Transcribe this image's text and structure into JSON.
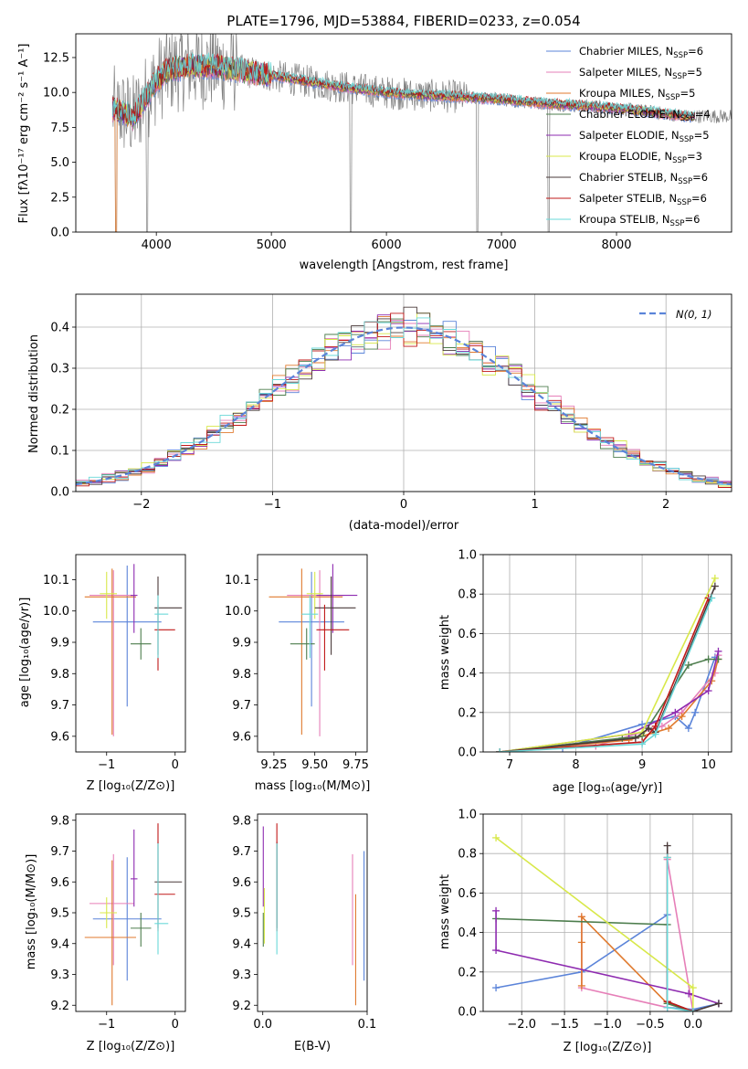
{
  "colors": {
    "Chabrier MILES": "#5b84d9",
    "Salpeter MILES": "#e67fb8",
    "Kroupa MILES": "#e07a2e",
    "Chabrier ELODIE": "#4d7d4d",
    "Salpeter ELODIE": "#8e2bb0",
    "Kroupa ELODIE": "#d8e84a",
    "Chabrier STELIB": "#4a3a3a",
    "Salpeter STELIB": "#c01818",
    "Kroupa STELIB": "#6ad8d8",
    "data": "#808080"
  },
  "chart_data": [
    {
      "id": "spectrum",
      "type": "line",
      "title": "PLATE=1796, MJD=53884, FIBERID=0233, z=0.054",
      "xlabel": "wavelength [Angstrom, rest frame]",
      "ylabel": "Flux [fλ10⁻¹⁷ erg cm⁻² s⁻¹ A⁻¹]",
      "xlim": [
        3300,
        9000
      ],
      "ylim": [
        0,
        14.2
      ],
      "xticks": [
        4000,
        5000,
        6000,
        7000,
        8000
      ],
      "yticks": [
        0.0,
        2.5,
        5.0,
        7.5,
        10.0,
        12.5
      ],
      "legend_position": "upper right",
      "series": [
        {
          "name": "Chabrier MILES",
          "nssp": "6"
        },
        {
          "name": "Salpeter MILES",
          "nssp": "5"
        },
        {
          "name": "Kroupa MILES",
          "nssp": "5"
        },
        {
          "name": "Chabrier ELODIE",
          "nssp": "4"
        },
        {
          "name": "Salpeter ELODIE",
          "nssp": "5"
        },
        {
          "name": "Kroupa ELODIE",
          "nssp": "3"
        },
        {
          "name": "Chabrier STELIB",
          "nssp": "6"
        },
        {
          "name": "Salpeter STELIB",
          "nssp": "6"
        },
        {
          "name": "Kroupa STELIB",
          "nssp": "6"
        }
      ],
      "model_continuum": {
        "x": [
          3620,
          3700,
          3800,
          3900,
          4000,
          4100,
          4300,
          4500,
          4700,
          5000,
          5300,
          5600,
          6000,
          6300,
          6600,
          7000,
          7400,
          7800,
          8200,
          8600
        ],
        "y": [
          8.8,
          8.6,
          8.2,
          9.5,
          10.8,
          11.6,
          11.9,
          11.9,
          11.6,
          11.2,
          10.8,
          10.4,
          10.0,
          9.8,
          9.7,
          9.5,
          9.2,
          9.0,
          8.7,
          8.3
        ]
      },
      "data_dropouts": [
        3650,
        3920,
        5690,
        6790,
        7410
      ]
    },
    {
      "id": "residuals",
      "type": "histogram",
      "xlabel": "(data-model)/error",
      "ylabel": "Normed distribution",
      "xlim": [
        -2.5,
        2.5
      ],
      "ylim": [
        0,
        0.48
      ],
      "xticks": [
        -2,
        -1,
        0,
        1,
        2
      ],
      "yticks": [
        0.0,
        0.1,
        0.2,
        0.3,
        0.4
      ],
      "grid": true,
      "legend": "~N(0, 1)",
      "legend_position": "upper right",
      "reference_curve": "gaussian mean 0 sigma 1"
    },
    {
      "id": "age-vs-z",
      "type": "errorbar",
      "xlabel": "Z [log₁₀(Z/Z⊙)]",
      "ylabel": "age  [log₁₀(age/yr)]",
      "xlim": [
        -1.45,
        0.15
      ],
      "ylim": [
        9.55,
        10.18
      ],
      "xticks": [
        -1,
        0
      ],
      "yticks": [
        9.6,
        9.7,
        9.8,
        9.9,
        10.0,
        10.1
      ],
      "points": [
        {
          "s": "Chabrier MILES",
          "x": -0.7,
          "xe": [
            0.5,
            0.5
          ],
          "y": 9.965,
          "ye": [
            0.27,
            0.18
          ]
        },
        {
          "s": "Salpeter MILES",
          "x": -0.9,
          "xe": [
            0.35,
            0.3
          ],
          "y": 10.05,
          "ye": [
            0.45,
            0.08
          ]
        },
        {
          "s": "Kroupa MILES",
          "x": -0.92,
          "xe": [
            0.4,
            0.35
          ],
          "y": 10.045,
          "ye": [
            0.44,
            0.09
          ]
        },
        {
          "s": "Chabrier ELODIE",
          "x": -0.5,
          "xe": [
            0.15,
            0.15
          ],
          "y": 9.895,
          "ye": [
            0.05,
            0.05
          ]
        },
        {
          "s": "Salpeter ELODIE",
          "x": -0.6,
          "xe": [
            0.05,
            0.05
          ],
          "y": 10.05,
          "ye": [
            0.12,
            0.1
          ]
        },
        {
          "s": "Kroupa ELODIE",
          "x": -1.0,
          "xe": [
            0.1,
            0.15
          ],
          "y": 10.055,
          "ye": [
            0.08,
            0.07
          ]
        },
        {
          "s": "Chabrier STELIB",
          "x": -0.25,
          "xe": [
            0.05,
            0.35
          ],
          "y": 10.01,
          "ye": [
            0.15,
            0.1
          ]
        },
        {
          "s": "Salpeter STELIB",
          "x": -0.25,
          "xe": [
            0.05,
            0.25
          ],
          "y": 9.94,
          "ye": [
            0.13,
            0.08
          ]
        },
        {
          "s": "Kroupa STELIB",
          "x": -0.25,
          "xe": [
            0.05,
            0.15
          ],
          "y": 9.99,
          "ye": [
            0.14,
            0.06
          ]
        }
      ]
    },
    {
      "id": "age-vs-mass",
      "type": "errorbar",
      "xlabel": "mass [log₁₀(M/M⊙)]",
      "xlim": [
        9.15,
        9.82
      ],
      "ylim": [
        9.55,
        10.18
      ],
      "xticks": [
        9.25,
        9.5,
        9.75
      ],
      "yticks": [
        9.6,
        9.7,
        9.8,
        9.9,
        10.0,
        10.1
      ],
      "points": [
        {
          "s": "Chabrier MILES",
          "x": 9.48,
          "xe": [
            0.2,
            0.2
          ],
          "y": 9.965,
          "ye": [
            0.27,
            0.16
          ]
        },
        {
          "s": "Salpeter MILES",
          "x": 9.53,
          "xe": [
            0.2,
            0.15
          ],
          "y": 10.05,
          "ye": [
            0.45,
            0.08
          ]
        },
        {
          "s": "Kroupa MILES",
          "x": 9.42,
          "xe": [
            0.2,
            0.25
          ],
          "y": 10.045,
          "ye": [
            0.44,
            0.09
          ]
        },
        {
          "s": "Chabrier ELODIE",
          "x": 9.45,
          "xe": [
            0.1,
            0.05
          ],
          "y": 9.895,
          "ye": [
            0.05,
            0.05
          ]
        },
        {
          "s": "Salpeter ELODIE",
          "x": 9.61,
          "xe": [
            0.1,
            0.15
          ],
          "y": 10.05,
          "ye": [
            0.12,
            0.1
          ]
        },
        {
          "s": "Kroupa ELODIE",
          "x": 9.5,
          "xe": [
            0.05,
            0.05
          ],
          "y": 10.055,
          "ye": [
            0.08,
            0.07
          ]
        },
        {
          "s": "Chabrier STELIB",
          "x": 9.6,
          "xe": [
            0.1,
            0.15
          ],
          "y": 10.01,
          "ye": [
            0.15,
            0.1
          ]
        },
        {
          "s": "Salpeter STELIB",
          "x": 9.56,
          "xe": [
            0.05,
            0.15
          ],
          "y": 9.94,
          "ye": [
            0.13,
            0.08
          ]
        },
        {
          "s": "Kroupa STELIB",
          "x": 9.47,
          "xe": [
            0.05,
            0.05
          ],
          "y": 9.99,
          "ye": [
            0.14,
            0.06
          ]
        }
      ]
    },
    {
      "id": "mass-weight-vs-age",
      "type": "line",
      "xlabel": "age  [log₁₀(age/yr)]",
      "ylabel": "mass weight",
      "xlim": [
        6.6,
        10.35
      ],
      "ylim": [
        0,
        1
      ],
      "xticks": [
        7,
        8,
        9,
        10
      ],
      "yticks": [
        0.0,
        0.2,
        0.4,
        0.6,
        0.8,
        1.0
      ],
      "grid": true,
      "series": [
        {
          "name": "Chabrier MILES",
          "x": [
            6.85,
            7.8,
            9.0,
            9.5,
            9.7,
            9.8,
            10.1
          ],
          "y": [
            0.0,
            0.02,
            0.14,
            0.18,
            0.12,
            0.2,
            0.48
          ]
        },
        {
          "name": "Salpeter MILES",
          "x": [
            6.85,
            8.3,
            9.3,
            9.6,
            10.1,
            10.15
          ],
          "y": [
            0.0,
            0.03,
            0.13,
            0.2,
            0.4,
            0.49
          ]
        },
        {
          "name": "Kroupa MILES",
          "x": [
            6.85,
            8.8,
            9.4,
            9.6,
            10.05,
            10.15
          ],
          "y": [
            0.0,
            0.06,
            0.12,
            0.18,
            0.36,
            0.47
          ]
        },
        {
          "name": "Chabrier ELODIE",
          "x": [
            6.85,
            8.7,
            9.0,
            9.7,
            10.0,
            10.15
          ],
          "y": [
            0.0,
            0.07,
            0.08,
            0.44,
            0.47,
            0.47
          ]
        },
        {
          "name": "Salpeter ELODIE",
          "x": [
            6.85,
            8.8,
            9.5,
            10.0,
            10.15
          ],
          "y": [
            0.0,
            0.09,
            0.2,
            0.31,
            0.51
          ]
        },
        {
          "name": "Kroupa ELODIE",
          "x": [
            6.85,
            9.0,
            10.1
          ],
          "y": [
            0.0,
            0.1,
            0.88
          ]
        },
        {
          "name": "Chabrier STELIB",
          "x": [
            6.85,
            8.9,
            9.1,
            9.2,
            10.1
          ],
          "y": [
            0.0,
            0.07,
            0.12,
            0.1,
            0.84
          ]
        },
        {
          "name": "Salpeter STELIB",
          "x": [
            6.85,
            9.0,
            9.2,
            10.0
          ],
          "y": [
            0.0,
            0.05,
            0.13,
            0.78
          ]
        },
        {
          "name": "Kroupa STELIB",
          "x": [
            6.85,
            9.0,
            9.2,
            10.05
          ],
          "y": [
            0.0,
            0.04,
            0.09,
            0.78
          ]
        }
      ]
    },
    {
      "id": "mass-vs-z",
      "type": "errorbar",
      "xlabel": "Z [log₁₀(Z/Z⊙)]",
      "ylabel": "mass [log₁₀(M/M⊙)]",
      "xlim": [
        -1.45,
        0.15
      ],
      "ylim": [
        9.18,
        9.82
      ],
      "xticks": [
        -1,
        0
      ],
      "yticks": [
        9.2,
        9.3,
        9.4,
        9.5,
        9.6,
        9.7,
        9.8
      ],
      "points": [
        {
          "s": "Chabrier MILES",
          "x": -0.7,
          "xe": [
            0.5,
            0.5
          ],
          "y": 9.48,
          "ye": [
            0.2,
            0.2
          ]
        },
        {
          "s": "Salpeter MILES",
          "x": -0.9,
          "xe": [
            0.35,
            0.3
          ],
          "y": 9.53,
          "ye": [
            0.2,
            0.16
          ]
        },
        {
          "s": "Kroupa MILES",
          "x": -0.92,
          "xe": [
            0.4,
            0.35
          ],
          "y": 9.42,
          "ye": [
            0.22,
            0.25
          ]
        },
        {
          "s": "Chabrier ELODIE",
          "x": -0.5,
          "xe": [
            0.15,
            0.15
          ],
          "y": 9.45,
          "ye": [
            0.06,
            0.05
          ]
        },
        {
          "s": "Salpeter ELODIE",
          "x": -0.6,
          "xe": [
            0.05,
            0.05
          ],
          "y": 9.61,
          "ye": [
            0.09,
            0.16
          ]
        },
        {
          "s": "Kroupa ELODIE",
          "x": -1.0,
          "xe": [
            0.1,
            0.15
          ],
          "y": 9.5,
          "ye": [
            0.05,
            0.05
          ]
        },
        {
          "s": "Chabrier STELIB",
          "x": -0.25,
          "xe": [
            0.05,
            0.35
          ],
          "y": 9.6,
          "ye": [
            0.15,
            0.13
          ]
        },
        {
          "s": "Salpeter STELIB",
          "x": -0.25,
          "xe": [
            0.05,
            0.25
          ],
          "y": 9.56,
          "ye": [
            0.12,
            0.23
          ]
        },
        {
          "s": "Kroupa STELIB",
          "x": -0.25,
          "xe": [
            0.05,
            0.15
          ],
          "y": 9.465,
          "ye": [
            0.1,
            0.26
          ]
        }
      ]
    },
    {
      "id": "mass-vs-ebv",
      "type": "errorbar",
      "xlabel": "E(B-V)",
      "xlim": [
        -0.005,
        0.1
      ],
      "ylim": [
        9.18,
        9.82
      ],
      "xticks": [
        0.0,
        0.1
      ],
      "yticks": [
        9.2,
        9.3,
        9.4,
        9.5,
        9.6,
        9.7,
        9.8
      ],
      "points": [
        {
          "s": "Chabrier MILES",
          "x": 0.097,
          "y": 9.48,
          "ye": [
            0.2,
            0.22
          ]
        },
        {
          "s": "Salpeter MILES",
          "x": 0.086,
          "y": 9.53,
          "ye": [
            0.2,
            0.16
          ]
        },
        {
          "s": "Kroupa MILES",
          "x": 0.089,
          "y": 9.42,
          "ye": [
            0.22,
            0.14
          ]
        },
        {
          "s": "Chabrier ELODIE",
          "x": 0.0005,
          "y": 9.45,
          "ye": [
            0.06,
            0.05
          ]
        },
        {
          "s": "Salpeter ELODIE",
          "x": 0.0005,
          "y": 9.61,
          "ye": [
            0.09,
            0.17
          ]
        },
        {
          "s": "Kroupa ELODIE",
          "x": 0.0015,
          "y": 9.5,
          "ye": [
            0.1,
            0.08
          ]
        },
        {
          "s": "Chabrier STELIB",
          "x": 0.0135,
          "y": 9.6,
          "ye": [
            0.15,
            0.13
          ]
        },
        {
          "s": "Salpeter STELIB",
          "x": 0.0135,
          "y": 9.56,
          "ye": [
            0.12,
            0.23
          ]
        },
        {
          "s": "Kroupa STELIB",
          "x": 0.0135,
          "y": 9.465,
          "ye": [
            0.1,
            0.26
          ]
        }
      ]
    },
    {
      "id": "mass-weight-vs-z",
      "type": "line",
      "xlabel": "Z [log₁₀(Z/Z⊙)]",
      "ylabel": "mass weight",
      "xlim": [
        -2.45,
        0.45
      ],
      "ylim": [
        0,
        1
      ],
      "xticks": [
        -2.0,
        -1.5,
        -1.0,
        -0.5,
        0.0
      ],
      "yticks": [
        0.0,
        0.2,
        0.4,
        0.6,
        0.8,
        1.0
      ],
      "grid": true,
      "series": [
        {
          "name": "Chabrier MILES",
          "x": [
            -2.3,
            -1.3,
            -0.3,
            -0.3,
            0.0,
            0.3
          ],
          "y": [
            0.12,
            0.2,
            0.49,
            0.02,
            0.01,
            0.04
          ]
        },
        {
          "name": "Salpeter MILES",
          "x": [
            -1.3,
            -1.3,
            -0.3,
            -0.3,
            0.0
          ],
          "y": [
            0.48,
            0.12,
            0.02,
            0.77,
            0.0
          ]
        },
        {
          "name": "Kroupa MILES",
          "x": [
            -1.3,
            -1.3,
            -1.3,
            -0.3,
            0.0
          ],
          "y": [
            0.13,
            0.35,
            0.48,
            0.04,
            0.0
          ]
        },
        {
          "name": "Chabrier ELODIE",
          "x": [
            -2.3,
            -0.3,
            -0.3,
            0.0
          ],
          "y": [
            0.47,
            0.44,
            0.04,
            0.0
          ]
        },
        {
          "name": "Salpeter ELODIE",
          "x": [
            -2.3,
            -2.3,
            -0.05,
            0.3
          ],
          "y": [
            0.51,
            0.31,
            0.09,
            0.04
          ]
        },
        {
          "name": "Kroupa ELODIE",
          "x": [
            -2.3,
            0.0,
            0.0
          ],
          "y": [
            0.88,
            0.12,
            0.0
          ]
        },
        {
          "name": "Chabrier STELIB",
          "x": [
            -0.3,
            -0.3,
            0.0,
            0.3
          ],
          "y": [
            0.84,
            0.05,
            0.0,
            0.04
          ]
        },
        {
          "name": "Salpeter STELIB",
          "x": [
            -0.3,
            -0.3,
            0.0
          ],
          "y": [
            0.78,
            0.05,
            0.0
          ]
        },
        {
          "name": "Kroupa STELIB",
          "x": [
            -0.3,
            -0.3,
            0.0
          ],
          "y": [
            0.78,
            0.02,
            0.0
          ]
        }
      ]
    }
  ]
}
